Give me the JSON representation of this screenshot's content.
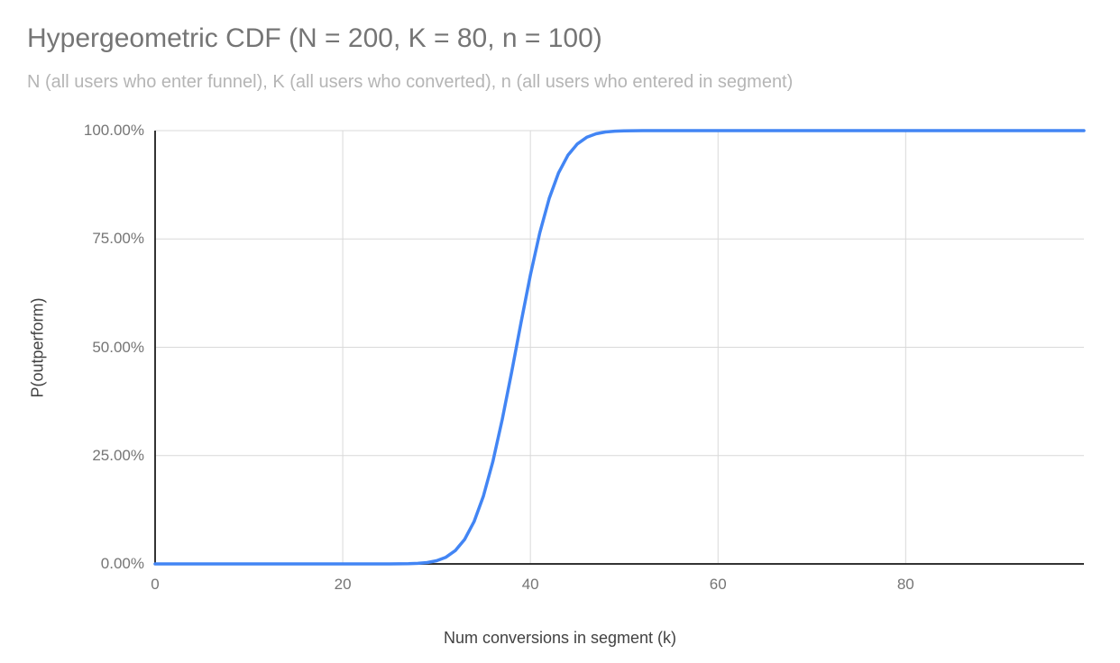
{
  "chart_data": {
    "type": "line",
    "title": "Hypergeometric CDF (N = 200, K = 80, n = 100)",
    "subtitle": "N (all users who enter funnel), K (all users who converted), n (all users who entered in segment)",
    "xlabel": "Num conversions in segment (k)",
    "ylabel": "P(outperform)",
    "xlim": [
      0,
      99
    ],
    "ylim": [
      0,
      1
    ],
    "grid": true,
    "legend": "none",
    "x_ticks": [
      {
        "value": 0,
        "label": "0"
      },
      {
        "value": 20,
        "label": "20"
      },
      {
        "value": 40,
        "label": "40"
      },
      {
        "value": 60,
        "label": "60"
      },
      {
        "value": 80,
        "label": "80"
      }
    ],
    "y_ticks": [
      {
        "value": 0,
        "label": "0.00%"
      },
      {
        "value": 0.25,
        "label": "25.00%"
      },
      {
        "value": 0.5,
        "label": "50.00%"
      },
      {
        "value": 0.75,
        "label": "75.00%"
      },
      {
        "value": 1,
        "label": "100.00%"
      }
    ],
    "colors": {
      "line": "#4285f4",
      "gridline": "#d9d9d9",
      "axis_line": "#333333",
      "title": "#757575",
      "subtitle": "#b5b5b5",
      "tick_label": "#757575",
      "axis_title": "#424242",
      "background": "#ffffff"
    },
    "series": [
      {
        "name": "P(outperform)",
        "color": "#4285f4",
        "x_start": 0,
        "x_step": 1,
        "y": [
          0,
          0,
          0,
          0,
          0,
          0,
          0,
          0,
          0,
          0,
          0,
          0,
          0,
          0,
          0,
          0,
          0,
          0,
          0,
          0,
          0,
          0,
          0,
          0,
          0,
          0.0001,
          0.0002,
          0.0005,
          0.0013,
          0.0031,
          0.0072,
          0.0154,
          0.0307,
          0.0567,
          0.0975,
          0.1568,
          0.2358,
          0.3329,
          0.4428,
          0.5572,
          0.6671,
          0.7642,
          0.8432,
          0.9025,
          0.9433,
          0.9693,
          0.9846,
          0.9928,
          0.9969,
          0.9987,
          0.9995,
          0.9998,
          0.9999,
          1,
          1,
          1,
          1,
          1,
          1,
          1,
          1,
          1,
          1,
          1,
          1,
          1,
          1,
          1,
          1,
          1,
          1,
          1,
          1,
          1,
          1,
          1,
          1,
          1,
          1,
          1,
          1,
          1,
          1,
          1,
          1,
          1,
          1,
          1,
          1,
          1,
          1,
          1,
          1,
          1,
          1,
          1,
          1,
          1,
          1,
          1
        ]
      }
    ]
  }
}
